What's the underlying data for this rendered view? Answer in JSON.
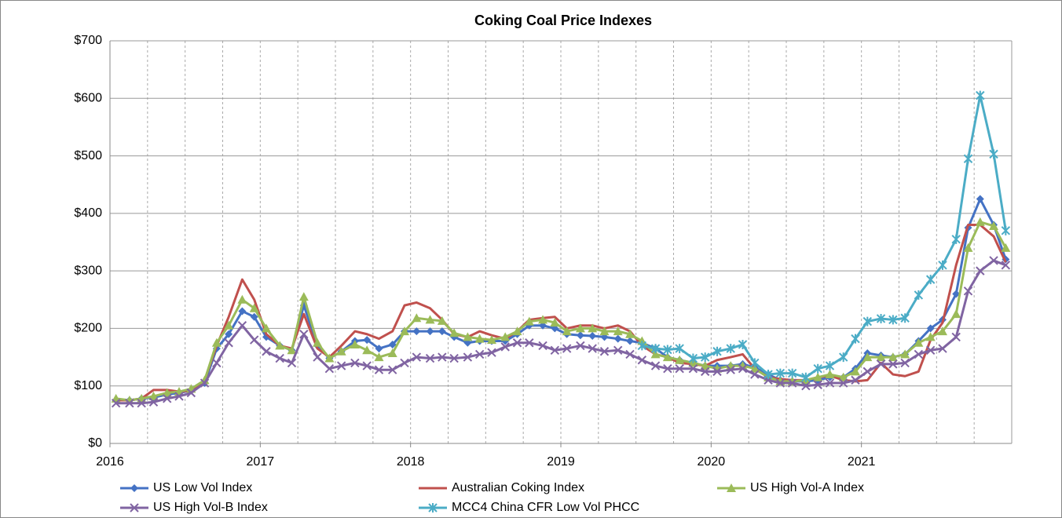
{
  "chart_data": {
    "type": "line",
    "title": "Coking Coal Price Indexes",
    "x": [
      2016.04,
      2016.13,
      2016.21,
      2016.29,
      2016.38,
      2016.46,
      2016.54,
      2016.63,
      2016.71,
      2016.79,
      2016.88,
      2016.96,
      2017.04,
      2017.13,
      2017.21,
      2017.29,
      2017.38,
      2017.46,
      2017.54,
      2017.63,
      2017.71,
      2017.79,
      2017.88,
      2017.96,
      2018.04,
      2018.13,
      2018.21,
      2018.29,
      2018.38,
      2018.46,
      2018.54,
      2018.63,
      2018.71,
      2018.79,
      2018.88,
      2018.96,
      2019.04,
      2019.13,
      2019.21,
      2019.29,
      2019.38,
      2019.46,
      2019.54,
      2019.63,
      2019.71,
      2019.79,
      2019.88,
      2019.96,
      2020.04,
      2020.13,
      2020.21,
      2020.29,
      2020.38,
      2020.46,
      2020.54,
      2020.63,
      2020.71,
      2020.79,
      2020.88,
      2020.96,
      2021.04,
      2021.13,
      2021.21,
      2021.29,
      2021.38,
      2021.46,
      2021.54,
      2021.63,
      2021.71,
      2021.79,
      2021.88,
      2021.96
    ],
    "xlim": [
      2016,
      2022
    ],
    "xticks": [
      2016,
      2017,
      2018,
      2019,
      2020,
      2021
    ],
    "ylim": [
      0,
      700
    ],
    "yticks": [
      {
        "value": 0,
        "label": "$0"
      },
      {
        "value": 100,
        "label": "$100"
      },
      {
        "value": 200,
        "label": "$200"
      },
      {
        "value": 300,
        "label": "$300"
      },
      {
        "value": 400,
        "label": "$400"
      },
      {
        "value": 500,
        "label": "$500"
      },
      {
        "value": 600,
        "label": "$600"
      },
      {
        "value": 700,
        "label": "$700"
      }
    ],
    "grid": true,
    "legend": "bottom",
    "series": [
      {
        "name": "US Low Vol Index",
        "color": "#4472c4",
        "marker": "diamond",
        "values": [
          75,
          75,
          78,
          80,
          85,
          88,
          92,
          105,
          165,
          190,
          230,
          220,
          185,
          170,
          162,
          240,
          170,
          148,
          160,
          178,
          180,
          165,
          172,
          195,
          195,
          195,
          195,
          185,
          175,
          178,
          178,
          178,
          190,
          205,
          205,
          200,
          190,
          188,
          187,
          185,
          182,
          178,
          175,
          165,
          150,
          145,
          140,
          135,
          135,
          135,
          138,
          132,
          120,
          110,
          108,
          108,
          110,
          115,
          115,
          130,
          157,
          153,
          150,
          155,
          178,
          200,
          215,
          260,
          375,
          425,
          380,
          320
        ]
      },
      {
        "name": "Australian Coking Index",
        "color": "#c0504d",
        "marker": "none",
        "values": [
          75,
          75,
          78,
          93,
          93,
          90,
          92,
          110,
          170,
          220,
          285,
          250,
          190,
          170,
          165,
          225,
          165,
          150,
          170,
          195,
          190,
          182,
          195,
          240,
          245,
          235,
          215,
          190,
          185,
          195,
          188,
          182,
          195,
          215,
          218,
          220,
          200,
          205,
          205,
          200,
          205,
          195,
          170,
          155,
          150,
          140,
          138,
          135,
          145,
          150,
          155,
          130,
          115,
          112,
          110,
          110,
          115,
          118,
          110,
          108,
          110,
          140,
          120,
          117,
          125,
          180,
          210,
          310,
          380,
          380,
          360,
          315
        ]
      },
      {
        "name": "US High Vol-A Index",
        "color": "#9bbb59",
        "marker": "triangle",
        "values": [
          78,
          75,
          78,
          82,
          88,
          90,
          95,
          110,
          175,
          205,
          250,
          235,
          200,
          170,
          162,
          255,
          175,
          148,
          160,
          172,
          162,
          150,
          157,
          195,
          218,
          215,
          213,
          192,
          185,
          182,
          180,
          185,
          195,
          212,
          215,
          210,
          195,
          200,
          200,
          195,
          195,
          190,
          178,
          155,
          150,
          145,
          140,
          135,
          130,
          135,
          135,
          130,
          115,
          108,
          108,
          110,
          115,
          120,
          115,
          125,
          150,
          150,
          150,
          155,
          175,
          185,
          195,
          225,
          340,
          385,
          378,
          340
        ]
      },
      {
        "name": "US High Vol-B Index",
        "color": "#8064a2",
        "marker": "x",
        "values": [
          70,
          70,
          70,
          72,
          78,
          82,
          88,
          105,
          140,
          175,
          205,
          180,
          160,
          148,
          140,
          190,
          150,
          130,
          135,
          140,
          135,
          128,
          128,
          140,
          150,
          148,
          150,
          148,
          150,
          155,
          158,
          168,
          175,
          175,
          170,
          162,
          165,
          170,
          165,
          160,
          162,
          155,
          145,
          135,
          130,
          130,
          130,
          125,
          125,
          128,
          130,
          120,
          110,
          105,
          105,
          100,
          102,
          105,
          105,
          110,
          125,
          138,
          138,
          140,
          155,
          162,
          165,
          185,
          265,
          300,
          318,
          310
        ]
      },
      {
        "name": "MCC4 China CFR Low Vol PHCC",
        "color": "#4bacc6",
        "marker": "star",
        "values": [
          null,
          null,
          null,
          null,
          null,
          null,
          null,
          null,
          null,
          null,
          null,
          null,
          null,
          null,
          null,
          null,
          null,
          null,
          null,
          null,
          null,
          null,
          null,
          null,
          null,
          null,
          null,
          null,
          null,
          null,
          null,
          null,
          null,
          null,
          null,
          null,
          null,
          null,
          null,
          null,
          null,
          null,
          170,
          165,
          163,
          165,
          148,
          150,
          160,
          165,
          172,
          140,
          120,
          122,
          122,
          115,
          130,
          135,
          150,
          182,
          212,
          217,
          215,
          218,
          258,
          285,
          310,
          355,
          495,
          605,
          503,
          370
        ]
      }
    ]
  }
}
